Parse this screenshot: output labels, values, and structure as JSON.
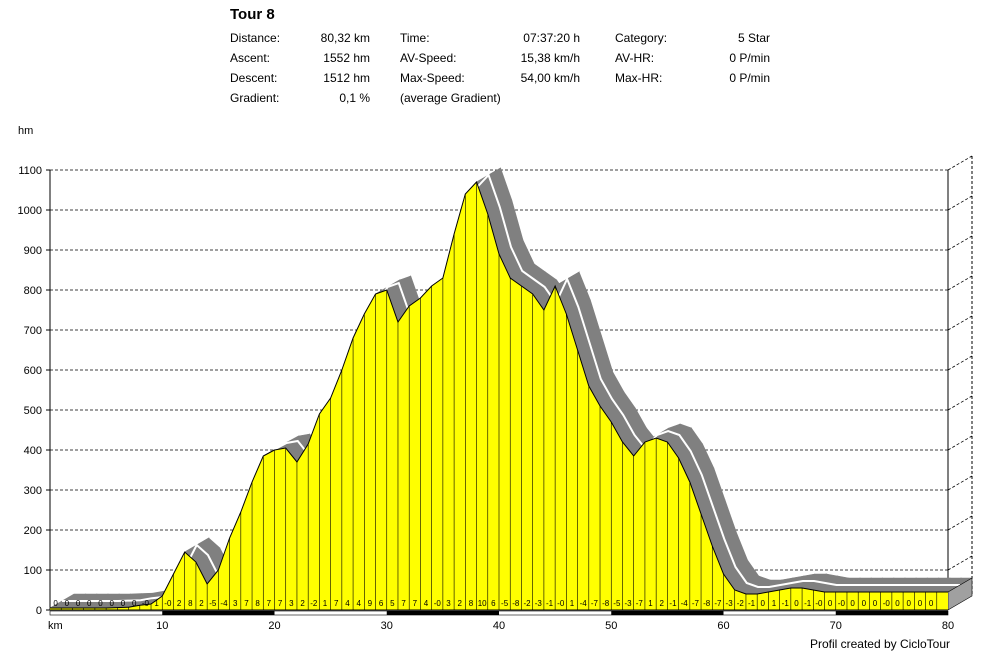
{
  "header": {
    "title": "Tour 8",
    "distance_label": "Distance:",
    "distance_value": "80,32 km",
    "ascent_label": "Ascent:",
    "ascent_value": "1552 hm",
    "descent_label": "Descent:",
    "descent_value": "1512 hm",
    "gradient_label": "Gradient:",
    "gradient_value": "0,1 %",
    "time_label": "Time:",
    "time_value": "07:37:20 h",
    "avspeed_label": "AV-Speed:",
    "avspeed_value": "15,38 km/h",
    "maxspeed_label": "Max-Speed:",
    "maxspeed_value": "54,00 km/h",
    "gradient_note": "(average Gradient)",
    "category_label": "Category:",
    "category_value": "5 Star",
    "avhr_label": "AV-HR:",
    "avhr_value": "0 P/min",
    "maxhr_label": "Max-HR:",
    "maxhr_value": "0 P/min"
  },
  "footer": {
    "credit": "Profil created by CicloTour"
  },
  "colors": {
    "fill": "#ffff00",
    "shadow": "#808080",
    "stripe": "#ffffff"
  },
  "chart_data": {
    "type": "area",
    "title": "",
    "xlabel": "km",
    "ylabel": "hm",
    "xlim": [
      0,
      80
    ],
    "ylim": [
      0,
      1100
    ],
    "x_ticks": [
      10,
      20,
      30,
      40,
      50,
      60,
      70,
      80
    ],
    "y_ticks": [
      0,
      100,
      200,
      300,
      400,
      500,
      600,
      700,
      800,
      900,
      1000,
      1100
    ],
    "grid": "horizontal dashed",
    "x": [
      0,
      1,
      2,
      3,
      4,
      5,
      6,
      7,
      8,
      9,
      10,
      11,
      12,
      13,
      14,
      15,
      16,
      17,
      18,
      19,
      20,
      21,
      22,
      23,
      24,
      25,
      26,
      27,
      28,
      29,
      30,
      31,
      32,
      33,
      34,
      35,
      36,
      37,
      38,
      39,
      40,
      41,
      42,
      43,
      44,
      45,
      46,
      47,
      48,
      49,
      50,
      51,
      52,
      53,
      54,
      55,
      56,
      57,
      58,
      59,
      60,
      61,
      62,
      63,
      64,
      65,
      66,
      67,
      68,
      69,
      70,
      71,
      72,
      73,
      74,
      75,
      76,
      77,
      78,
      79,
      80
    ],
    "elevation": [
      5,
      5,
      5,
      5,
      5,
      5,
      6,
      7,
      12,
      15,
      35,
      90,
      145,
      120,
      65,
      100,
      180,
      245,
      320,
      385,
      400,
      405,
      370,
      415,
      490,
      530,
      600,
      680,
      740,
      790,
      800,
      720,
      760,
      780,
      810,
      830,
      940,
      1040,
      1070,
      990,
      890,
      830,
      810,
      790,
      750,
      810,
      740,
      650,
      560,
      510,
      470,
      420,
      385,
      420,
      430,
      420,
      380,
      320,
      240,
      160,
      90,
      50,
      40,
      40,
      45,
      50,
      55,
      55,
      50,
      45,
      45,
      45,
      45,
      45,
      45,
      45,
      45,
      45,
      45,
      45,
      45
    ],
    "gradient_labels": [
      "0",
      "0",
      "0",
      "0",
      "0",
      "0",
      "0",
      "0",
      "-0",
      "1",
      "-0",
      "2",
      "8",
      "2",
      "-5",
      "-4",
      "3",
      "7",
      "8",
      "7",
      "7",
      "3",
      "2",
      "-2",
      "1",
      "7",
      "4",
      "4",
      "9",
      "6",
      "5",
      "7",
      "7",
      "4",
      "-0",
      "3",
      "2",
      "8",
      "10",
      "6",
      "-5",
      "-8",
      "-2",
      "-3",
      "-1",
      "-0",
      "1",
      "-4",
      "-7",
      "-8",
      "-5",
      "-3",
      "-7",
      "1",
      "2",
      "-1",
      "-4",
      "-7",
      "-8",
      "-7",
      "-3",
      "-2",
      "-1",
      "0",
      "1",
      "-1",
      "0",
      "-1",
      "-0",
      "0",
      "-0",
      "0",
      "0",
      "0",
      "-0",
      "0",
      "0",
      "0",
      "0"
    ]
  }
}
